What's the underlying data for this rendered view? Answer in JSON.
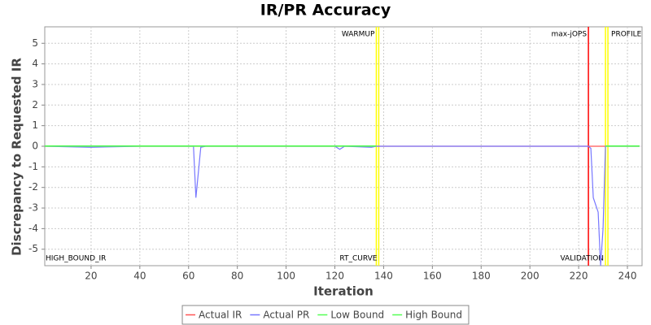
{
  "chart_data": {
    "type": "line",
    "title": "IR/PR Accuracy",
    "x_label": "Iteration",
    "y_label": "Discrepancy to Requested IR",
    "xlim": [
      1,
      246
    ],
    "ylim": [
      -5.8,
      5.8
    ],
    "xticks": [
      20,
      40,
      60,
      80,
      100,
      120,
      140,
      160,
      180,
      200,
      220,
      240
    ],
    "yticks": [
      -5,
      -4,
      -3,
      -2,
      -1,
      0,
      1,
      2,
      3,
      4,
      5
    ],
    "grid": true,
    "series": [
      {
        "name": "Actual IR",
        "color": "#ff5555",
        "x": [
          1,
          245
        ],
        "values": [
          0,
          0
        ]
      },
      {
        "name": "Actual PR",
        "color": "#7777ff",
        "x": [
          1,
          20,
          40,
          60,
          62,
          63,
          65,
          67,
          100,
          120,
          122,
          124,
          135,
          137,
          224,
          225,
          226,
          228,
          229,
          230,
          231,
          245
        ],
        "values": [
          0,
          -0.05,
          0,
          0,
          0,
          -2.5,
          -0.05,
          0,
          0,
          0,
          -0.15,
          0,
          -0.05,
          0,
          0,
          -0.1,
          -2.5,
          -3.2,
          -5.8,
          -4.0,
          0,
          0
        ]
      },
      {
        "name": "Low Bound",
        "color": "#55ff55",
        "x": [
          1,
          137,
          138,
          231,
          245
        ],
        "values": [
          0,
          0,
          null,
          0,
          0
        ]
      },
      {
        "name": "High Bound",
        "color": "#55ff55",
        "x": [
          1,
          137,
          138,
          231,
          245
        ],
        "values": [
          0.02,
          0.02,
          null,
          0.02,
          0.02
        ]
      }
    ],
    "markers": [
      {
        "value": 137,
        "label": "WARMUP",
        "color": "#ffff00"
      },
      {
        "value": 138,
        "label": "RT_CURVE",
        "color": "#ffff00"
      },
      {
        "value": 224,
        "label": "max-jOPS",
        "color": "#ff0000"
      },
      {
        "value": 231,
        "label": "VALIDATION",
        "color": "#ffff00"
      },
      {
        "value": 232,
        "label": "PROFILE",
        "color": "#ffff00"
      }
    ],
    "annotations": [
      {
        "text": "HIGH_BOUND_IR",
        "x": 1
      }
    ]
  }
}
